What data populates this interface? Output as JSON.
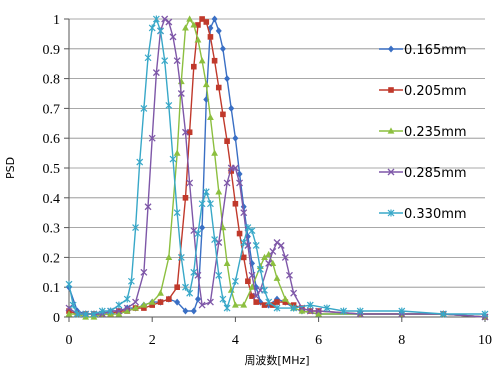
{
  "chart_data": {
    "type": "line",
    "title": "",
    "xlabel": "周波数[MHz]",
    "ylabel": "PSD",
    "xlim": [
      0,
      10
    ],
    "ylim": [
      0,
      1
    ],
    "x_ticks": [
      "0",
      "2",
      "4",
      "6",
      "8",
      "10"
    ],
    "y_ticks": [
      "0",
      "0.1",
      "0.2",
      "0.3",
      "0.4",
      "0.5",
      "0.6",
      "0.7",
      "0.8",
      "0.9",
      "1"
    ],
    "grid": "horizontal",
    "legend_position": "right",
    "series": [
      {
        "name": "0.165mm",
        "color": "#3a6fc4",
        "marker": "diamond",
        "points": [
          [
            0,
            0.1
          ],
          [
            0.2,
            0.02
          ],
          [
            0.4,
            0.01
          ],
          [
            0.6,
            0.01
          ],
          [
            0.8,
            0.01
          ],
          [
            1.0,
            0.02
          ],
          [
            1.2,
            0.02
          ],
          [
            1.4,
            0.03
          ],
          [
            1.6,
            0.03
          ],
          [
            1.8,
            0.04
          ],
          [
            2.0,
            0.05
          ],
          [
            2.2,
            0.05
          ],
          [
            2.4,
            0.06
          ],
          [
            2.6,
            0.05
          ],
          [
            2.8,
            0.02
          ],
          [
            3.0,
            0.02
          ],
          [
            3.1,
            0.06
          ],
          [
            3.2,
            0.3
          ],
          [
            3.3,
            0.73
          ],
          [
            3.4,
            0.97
          ],
          [
            3.5,
            1.0
          ],
          [
            3.6,
            0.96
          ],
          [
            3.7,
            0.9
          ],
          [
            3.8,
            0.8
          ],
          [
            3.9,
            0.7
          ],
          [
            4.0,
            0.6
          ],
          [
            4.1,
            0.48
          ],
          [
            4.2,
            0.37
          ],
          [
            4.3,
            0.27
          ],
          [
            4.4,
            0.18
          ],
          [
            4.5,
            0.1
          ],
          [
            4.6,
            0.05
          ],
          [
            4.8,
            0.04
          ],
          [
            5.0,
            0.06
          ],
          [
            5.2,
            0.05
          ],
          [
            5.4,
            0.03
          ],
          [
            5.6,
            0.02
          ],
          [
            6.0,
            0.01
          ],
          [
            7.0,
            0.01
          ],
          [
            8.0,
            0.01
          ],
          [
            9.0,
            0.01
          ],
          [
            10.0,
            0.0
          ]
        ]
      },
      {
        "name": "0.205mm",
        "color": "#c0392b",
        "marker": "square",
        "points": [
          [
            0,
            0.02
          ],
          [
            0.2,
            0.01
          ],
          [
            0.4,
            0.01
          ],
          [
            0.6,
            0.01
          ],
          [
            0.8,
            0.01
          ],
          [
            1.0,
            0.01
          ],
          [
            1.2,
            0.02
          ],
          [
            1.4,
            0.02
          ],
          [
            1.6,
            0.03
          ],
          [
            1.8,
            0.03
          ],
          [
            2.0,
            0.04
          ],
          [
            2.2,
            0.05
          ],
          [
            2.4,
            0.06
          ],
          [
            2.6,
            0.1
          ],
          [
            2.8,
            0.4
          ],
          [
            2.9,
            0.62
          ],
          [
            3.0,
            0.84
          ],
          [
            3.1,
            0.98
          ],
          [
            3.2,
            1.0
          ],
          [
            3.3,
            0.99
          ],
          [
            3.4,
            0.94
          ],
          [
            3.5,
            0.86
          ],
          [
            3.6,
            0.77
          ],
          [
            3.7,
            0.68
          ],
          [
            3.8,
            0.59
          ],
          [
            3.9,
            0.49
          ],
          [
            4.0,
            0.38
          ],
          [
            4.1,
            0.28
          ],
          [
            4.2,
            0.2
          ],
          [
            4.3,
            0.12
          ],
          [
            4.4,
            0.07
          ],
          [
            4.5,
            0.05
          ],
          [
            4.7,
            0.04
          ],
          [
            4.9,
            0.04
          ],
          [
            5.0,
            0.05
          ],
          [
            5.2,
            0.05
          ],
          [
            5.4,
            0.04
          ],
          [
            5.6,
            0.03
          ],
          [
            5.8,
            0.02
          ],
          [
            6.0,
            0.02
          ],
          [
            7.0,
            0.01
          ],
          [
            8.0,
            0.01
          ],
          [
            9.0,
            0.01
          ],
          [
            10.0,
            0.0
          ]
        ]
      },
      {
        "name": "0.235mm",
        "color": "#8cbf3f",
        "marker": "triangle",
        "points": [
          [
            0,
            0.01
          ],
          [
            0.2,
            0.01
          ],
          [
            0.4,
            0.0
          ],
          [
            0.6,
            0.0
          ],
          [
            0.8,
            0.01
          ],
          [
            1.0,
            0.01
          ],
          [
            1.2,
            0.01
          ],
          [
            1.4,
            0.02
          ],
          [
            1.6,
            0.03
          ],
          [
            1.8,
            0.04
          ],
          [
            2.0,
            0.05
          ],
          [
            2.2,
            0.08
          ],
          [
            2.4,
            0.2
          ],
          [
            2.6,
            0.55
          ],
          [
            2.7,
            0.79
          ],
          [
            2.8,
            0.97
          ],
          [
            2.9,
            1.0
          ],
          [
            3.0,
            0.98
          ],
          [
            3.1,
            0.93
          ],
          [
            3.2,
            0.86
          ],
          [
            3.3,
            0.78
          ],
          [
            3.4,
            0.67
          ],
          [
            3.5,
            0.55
          ],
          [
            3.6,
            0.42
          ],
          [
            3.7,
            0.3
          ],
          [
            3.8,
            0.18
          ],
          [
            3.9,
            0.09
          ],
          [
            4.0,
            0.04
          ],
          [
            4.2,
            0.04
          ],
          [
            4.4,
            0.1
          ],
          [
            4.6,
            0.17
          ],
          [
            4.7,
            0.2
          ],
          [
            4.8,
            0.21
          ],
          [
            4.9,
            0.18
          ],
          [
            5.0,
            0.13
          ],
          [
            5.2,
            0.06
          ],
          [
            5.4,
            0.03
          ],
          [
            5.6,
            0.02
          ],
          [
            6.0,
            0.01
          ],
          [
            7.0,
            0.01
          ],
          [
            8.0,
            0.01
          ],
          [
            9.0,
            0.01
          ],
          [
            10.0,
            0.0
          ]
        ]
      },
      {
        "name": "0.285mm",
        "color": "#7e57a8",
        "marker": "x",
        "points": [
          [
            0,
            0.03
          ],
          [
            0.2,
            0.01
          ],
          [
            0.4,
            0.01
          ],
          [
            0.6,
            0.01
          ],
          [
            0.8,
            0.01
          ],
          [
            1.0,
            0.02
          ],
          [
            1.2,
            0.02
          ],
          [
            1.4,
            0.03
          ],
          [
            1.6,
            0.05
          ],
          [
            1.8,
            0.15
          ],
          [
            1.9,
            0.37
          ],
          [
            2.0,
            0.6
          ],
          [
            2.1,
            0.82
          ],
          [
            2.2,
            0.96
          ],
          [
            2.3,
            1.0
          ],
          [
            2.4,
            0.99
          ],
          [
            2.5,
            0.94
          ],
          [
            2.6,
            0.86
          ],
          [
            2.7,
            0.75
          ],
          [
            2.8,
            0.62
          ],
          [
            2.9,
            0.45
          ],
          [
            3.0,
            0.29
          ],
          [
            3.1,
            0.14
          ],
          [
            3.2,
            0.04
          ],
          [
            3.4,
            0.05
          ],
          [
            3.6,
            0.25
          ],
          [
            3.8,
            0.45
          ],
          [
            3.9,
            0.5
          ],
          [
            4.0,
            0.5
          ],
          [
            4.1,
            0.45
          ],
          [
            4.2,
            0.35
          ],
          [
            4.3,
            0.24
          ],
          [
            4.4,
            0.14
          ],
          [
            4.5,
            0.07
          ],
          [
            4.6,
            0.09
          ],
          [
            4.8,
            0.18
          ],
          [
            4.9,
            0.22
          ],
          [
            5.0,
            0.25
          ],
          [
            5.1,
            0.24
          ],
          [
            5.2,
            0.2
          ],
          [
            5.3,
            0.14
          ],
          [
            5.4,
            0.08
          ],
          [
            5.6,
            0.03
          ],
          [
            5.8,
            0.02
          ],
          [
            6.0,
            0.02
          ],
          [
            7.0,
            0.01
          ],
          [
            8.0,
            0.01
          ],
          [
            9.0,
            0.01
          ],
          [
            10.0,
            0.0
          ]
        ]
      },
      {
        "name": "0.330mm",
        "color": "#38a8c8",
        "marker": "star",
        "points": [
          [
            0,
            0.11
          ],
          [
            0.1,
            0.04
          ],
          [
            0.2,
            0.01
          ],
          [
            0.4,
            0.01
          ],
          [
            0.6,
            0.01
          ],
          [
            0.8,
            0.02
          ],
          [
            1.0,
            0.02
          ],
          [
            1.2,
            0.04
          ],
          [
            1.4,
            0.06
          ],
          [
            1.5,
            0.12
          ],
          [
            1.6,
            0.3
          ],
          [
            1.7,
            0.52
          ],
          [
            1.8,
            0.7
          ],
          [
            1.9,
            0.87
          ],
          [
            2.0,
            0.97
          ],
          [
            2.1,
            1.0
          ],
          [
            2.2,
            0.96
          ],
          [
            2.3,
            0.86
          ],
          [
            2.4,
            0.71
          ],
          [
            2.5,
            0.53
          ],
          [
            2.6,
            0.35
          ],
          [
            2.7,
            0.2
          ],
          [
            2.8,
            0.1
          ],
          [
            2.9,
            0.08
          ],
          [
            3.0,
            0.15
          ],
          [
            3.1,
            0.28
          ],
          [
            3.2,
            0.38
          ],
          [
            3.3,
            0.42
          ],
          [
            3.4,
            0.38
          ],
          [
            3.5,
            0.26
          ],
          [
            3.6,
            0.14
          ],
          [
            3.7,
            0.06
          ],
          [
            3.8,
            0.03
          ],
          [
            4.0,
            0.12
          ],
          [
            4.2,
            0.25
          ],
          [
            4.3,
            0.3
          ],
          [
            4.4,
            0.29
          ],
          [
            4.5,
            0.24
          ],
          [
            4.6,
            0.16
          ],
          [
            4.7,
            0.09
          ],
          [
            4.8,
            0.05
          ],
          [
            5.0,
            0.03
          ],
          [
            5.4,
            0.03
          ],
          [
            5.8,
            0.04
          ],
          [
            6.2,
            0.03
          ],
          [
            6.6,
            0.02
          ],
          [
            7.0,
            0.02
          ],
          [
            8.0,
            0.02
          ],
          [
            9.0,
            0.01
          ],
          [
            10.0,
            0.01
          ]
        ]
      }
    ]
  }
}
